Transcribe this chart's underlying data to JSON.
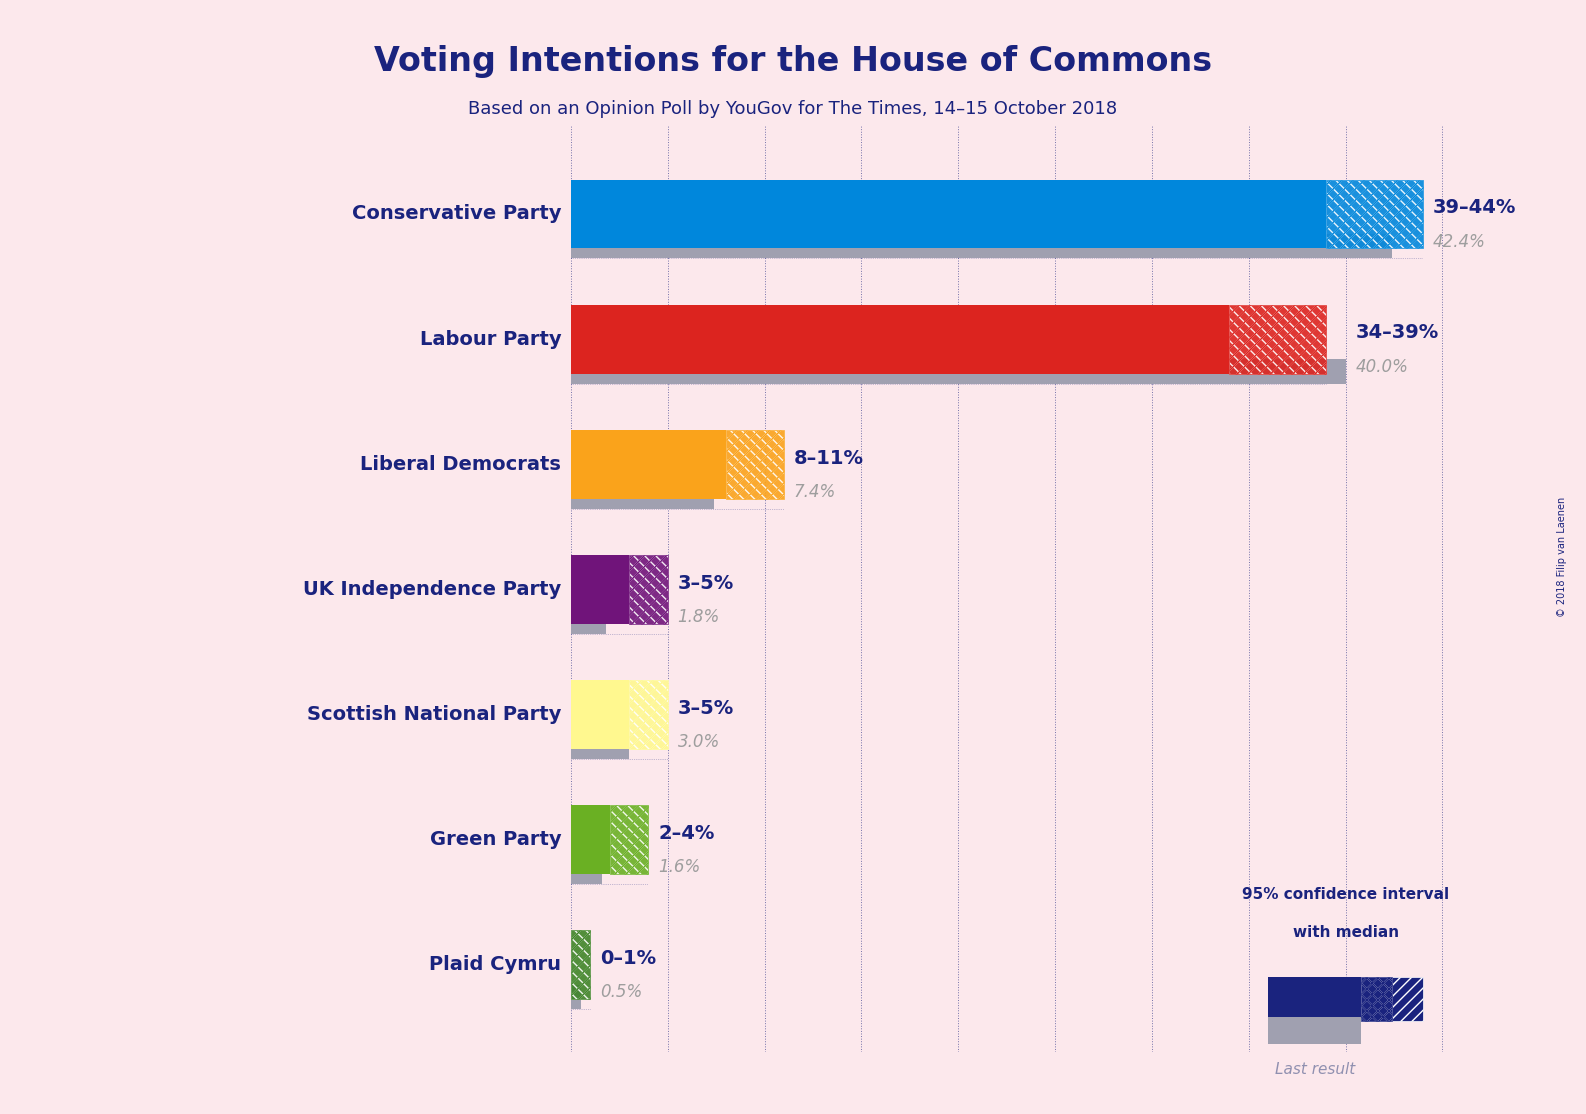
{
  "title": "Voting Intentions for the House of Commons",
  "subtitle": "Based on an Opinion Poll by YouGov for The Times, 14–15 October 2018",
  "copyright": "© 2018 Filip van Laenen",
  "background_color": "#fce8ec",
  "text_color": "#1a237e",
  "parties": [
    {
      "name": "Conservative Party",
      "last_result": 42.4,
      "ci_low": 39,
      "ci_high": 44,
      "median": 42.4,
      "color": "#0087dc",
      "label": "39–44%",
      "sublabel": "42.4%"
    },
    {
      "name": "Labour Party",
      "last_result": 40.0,
      "ci_low": 34,
      "ci_high": 39,
      "median": 40.0,
      "color": "#dc241f",
      "label": "34–39%",
      "sublabel": "40.0%"
    },
    {
      "name": "Liberal Democrats",
      "last_result": 7.4,
      "ci_low": 8,
      "ci_high": 11,
      "median": 7.4,
      "color": "#faa31b",
      "label": "8–11%",
      "sublabel": "7.4%"
    },
    {
      "name": "UK Independence Party",
      "last_result": 1.8,
      "ci_low": 3,
      "ci_high": 5,
      "median": 1.8,
      "color": "#70147a",
      "label": "3–5%",
      "sublabel": "1.8%"
    },
    {
      "name": "Scottish National Party",
      "last_result": 3.0,
      "ci_low": 3,
      "ci_high": 5,
      "median": 3.0,
      "color": "#fff88f",
      "label": "3–5%",
      "sublabel": "3.0%"
    },
    {
      "name": "Green Party",
      "last_result": 1.6,
      "ci_low": 2,
      "ci_high": 4,
      "median": 1.6,
      "color": "#6ab023",
      "label": "2–4%",
      "sublabel": "1.6%"
    },
    {
      "name": "Plaid Cymru",
      "last_result": 0.5,
      "ci_low": 0,
      "ci_high": 1,
      "median": 0.5,
      "color": "#3f8428",
      "label": "0–1%",
      "sublabel": "0.5%"
    }
  ],
  "xlim": [
    0,
    50
  ],
  "legend_text1": "95% confidence interval",
  "legend_text2": "with median",
  "legend_text3": "Last result",
  "grid_color": "#1a237e",
  "dotted_color": "#1a237e"
}
